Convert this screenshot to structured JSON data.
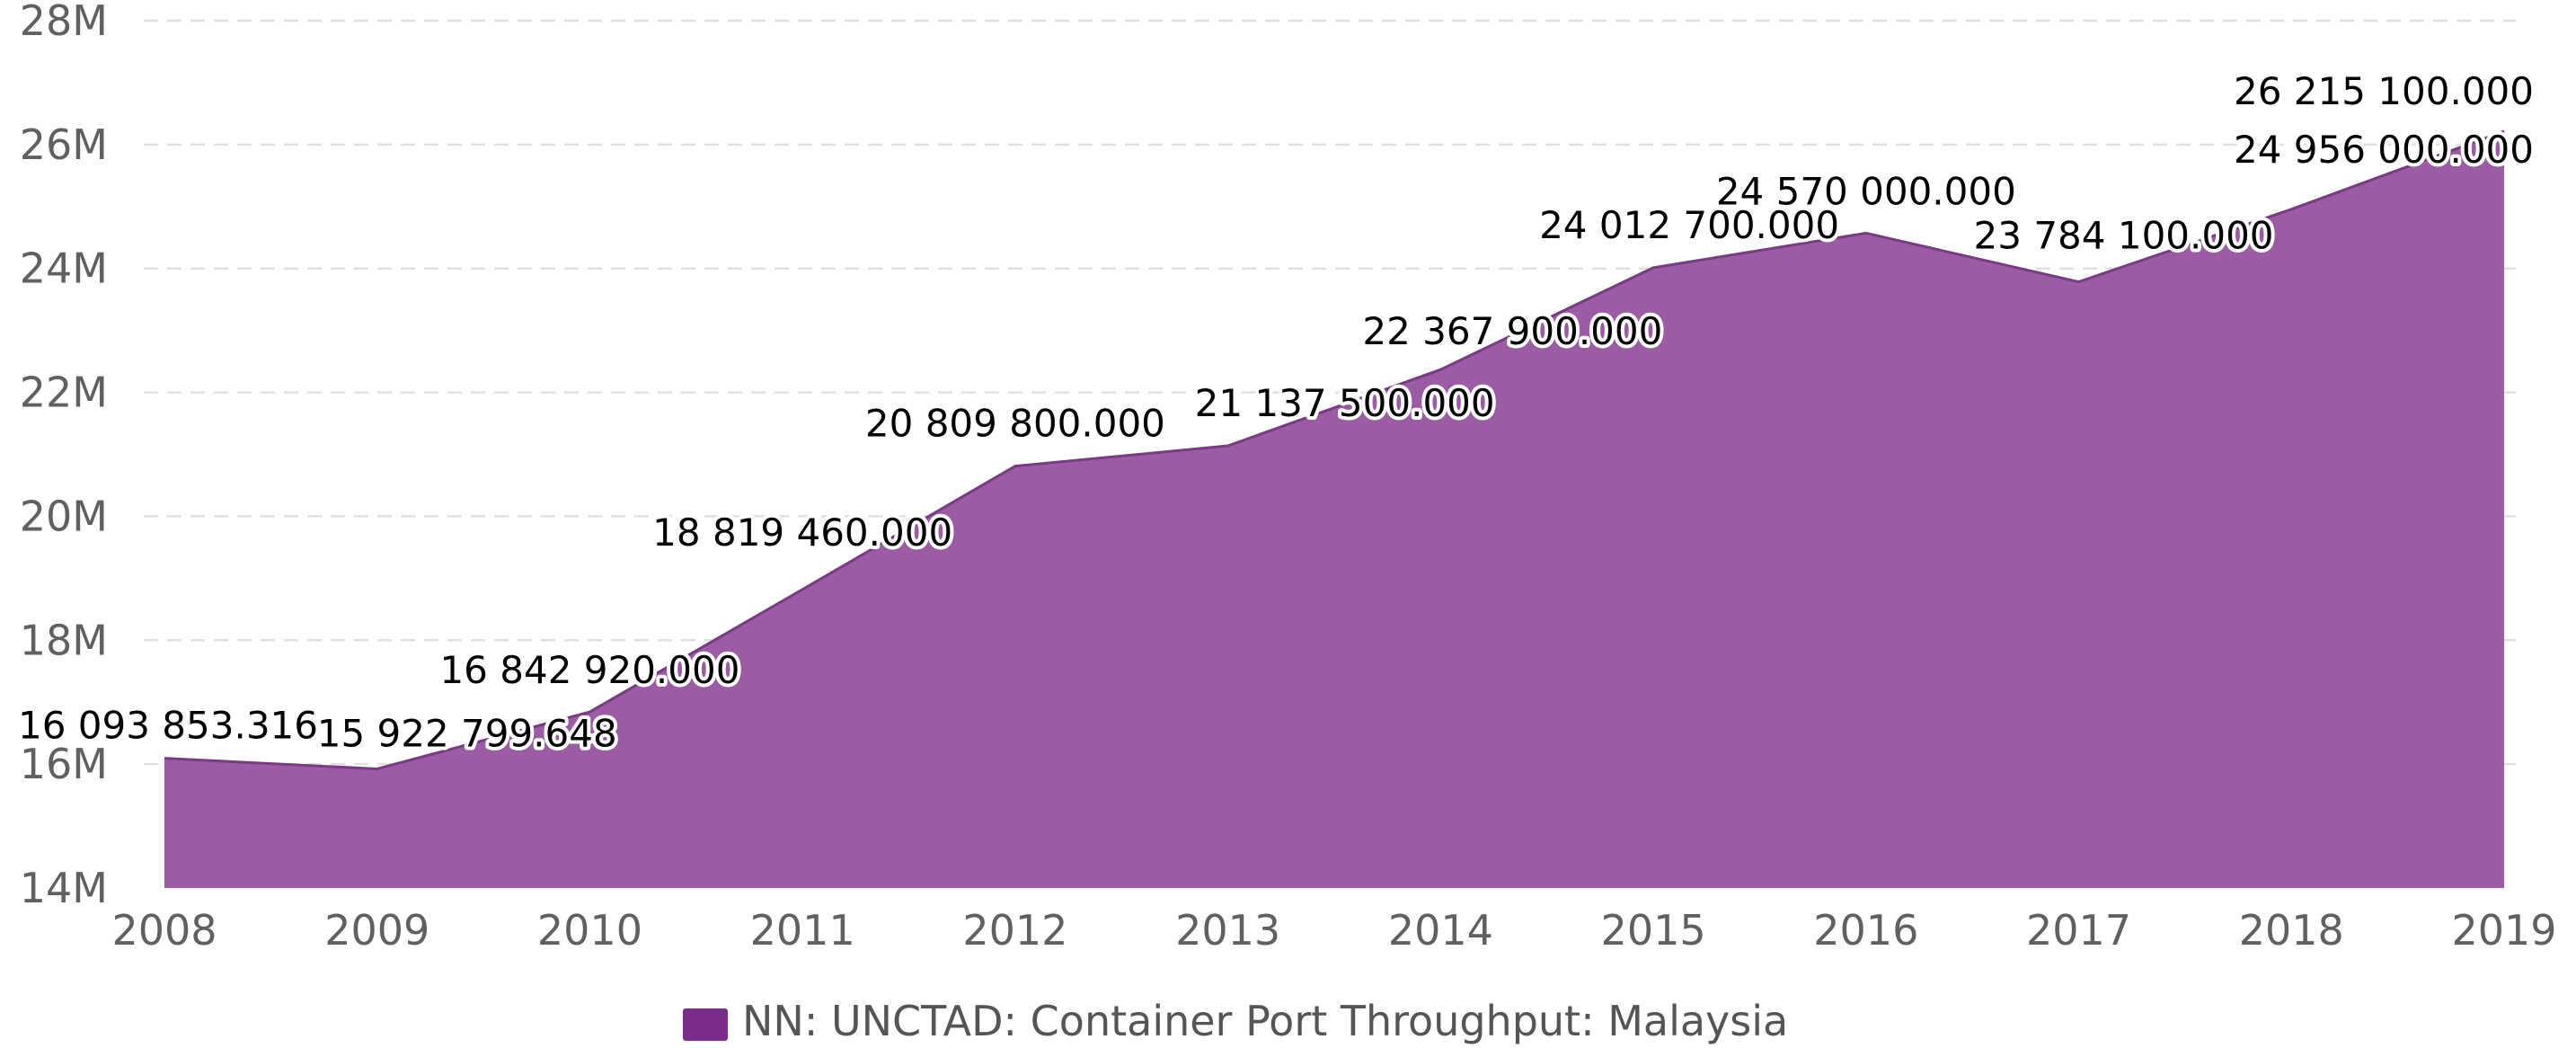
{
  "chart_data": {
    "type": "area",
    "title": "",
    "xlabel": "",
    "ylabel": "",
    "categories": [
      "2008",
      "2009",
      "2010",
      "2011",
      "2012",
      "2013",
      "2014",
      "2015",
      "2016",
      "2017",
      "2018",
      "2019"
    ],
    "series": [
      {
        "name": "NN: UNCTAD: Container Port Throughput: Malaysia",
        "color": "#9b5ca3",
        "line_color": "#7b3a86",
        "values": [
          16093853.316,
          15922799.648,
          16842920.0,
          18819460.0,
          20809800.0,
          21137500.0,
          22367900.0,
          24012700.0,
          24570000.0,
          23784100.0,
          24956000.0,
          26215100.0
        ],
        "data_labels": [
          "16 093 853.316",
          "15 922 799.648",
          "16 842 920.000",
          "18 819 460.000",
          "20 809 800.000",
          "21 137 500.000",
          "22 367 900.000",
          "24 012 700.000",
          "24 570 000.000",
          "23 784 100.000",
          "24 956 000.000",
          "26 215 100.000"
        ]
      }
    ],
    "ylim": [
      14000000,
      28000000
    ],
    "yticks": [
      {
        "value": 14000000,
        "label": "14M"
      },
      {
        "value": 16000000,
        "label": "16M"
      },
      {
        "value": 18000000,
        "label": "18M"
      },
      {
        "value": 20000000,
        "label": "20M"
      },
      {
        "value": 22000000,
        "label": "22M"
      },
      {
        "value": 24000000,
        "label": "24M"
      },
      {
        "value": 26000000,
        "label": "26M"
      },
      {
        "value": 28000000,
        "label": "28M"
      }
    ],
    "grid": true,
    "legend_position": "bottom-center",
    "legend_swatch_color": "#7b2d8b"
  }
}
